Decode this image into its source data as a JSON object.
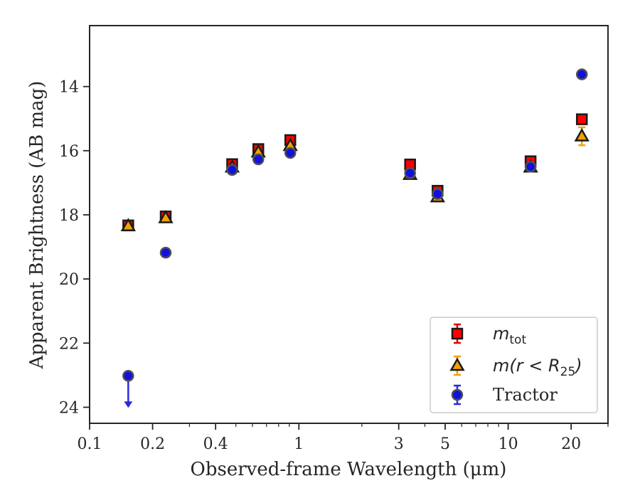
{
  "chart_data": {
    "type": "scatter",
    "xlabel": "Observed-frame Wavelength (μm)",
    "ylabel": "Apparent Brightness (AB mag)",
    "x_scale": "log",
    "xlim": [
      0.1,
      30
    ],
    "ylim": [
      24.5,
      12.1
    ],
    "y_inverted": true,
    "grid": false,
    "legend_position": "bottom-right",
    "x_ticks": [
      {
        "value": 0.1,
        "label": "0.1"
      },
      {
        "value": 0.2,
        "label": "0.2"
      },
      {
        "value": 0.4,
        "label": "0.4"
      },
      {
        "value": 1,
        "label": "1"
      },
      {
        "value": 3,
        "label": "3"
      },
      {
        "value": 5,
        "label": "5"
      },
      {
        "value": 10,
        "label": "10"
      },
      {
        "value": 20,
        "label": "20"
      }
    ],
    "y_ticks": [
      {
        "value": 14,
        "label": "14"
      },
      {
        "value": 16,
        "label": "16"
      },
      {
        "value": 18,
        "label": "18"
      },
      {
        "value": 20,
        "label": "20"
      },
      {
        "value": 22,
        "label": "22"
      },
      {
        "value": 24,
        "label": "24"
      }
    ],
    "series": [
      {
        "name": "m_tot",
        "legend": {
          "base": "m",
          "sub": "tot"
        },
        "marker": "square",
        "color": "#ff0000",
        "edge_color": "#1a1a1a",
        "error_color": "#e00000",
        "points": [
          {
            "x": 0.153,
            "y": 18.33
          },
          {
            "x": 0.231,
            "y": 18.05
          },
          {
            "x": 0.48,
            "y": 16.42
          },
          {
            "x": 0.64,
            "y": 15.95
          },
          {
            "x": 0.91,
            "y": 15.67
          },
          {
            "x": 3.4,
            "y": 16.43
          },
          {
            "x": 4.6,
            "y": 17.25
          },
          {
            "x": 12.8,
            "y": 16.33
          },
          {
            "x": 22.5,
            "y": 15.02
          }
        ]
      },
      {
        "name": "m(r<R25)",
        "legend": {
          "base": "m(r < R",
          "sub": "25",
          "tail": ")"
        },
        "marker": "triangle",
        "color": "#f5a000",
        "edge_color": "#1a1a1a",
        "error_color": "#f5a000",
        "points": [
          {
            "x": 0.153,
            "y": 18.35
          },
          {
            "x": 0.231,
            "y": 18.1
          },
          {
            "x": 0.48,
            "y": 16.52
          },
          {
            "x": 0.64,
            "y": 16.05
          },
          {
            "x": 0.91,
            "y": 15.85
          },
          {
            "x": 3.4,
            "y": 16.75
          },
          {
            "x": 4.6,
            "y": 17.45
          },
          {
            "x": 12.8,
            "y": 16.52
          },
          {
            "x": 22.5,
            "y": 15.55,
            "err": 0.28
          }
        ]
      },
      {
        "name": "Tractor",
        "legend": {
          "base": "Tractor"
        },
        "marker": "circle",
        "color": "#1010e0",
        "edge_color": "#505050",
        "error_color": "#2a2ae0",
        "points": [
          {
            "x": 0.153,
            "y": 23.02,
            "upper_limit": true
          },
          {
            "x": 0.231,
            "y": 19.18
          },
          {
            "x": 0.48,
            "y": 16.6
          },
          {
            "x": 0.64,
            "y": 16.27
          },
          {
            "x": 0.91,
            "y": 16.07
          },
          {
            "x": 3.4,
            "y": 16.7
          },
          {
            "x": 4.6,
            "y": 17.35
          },
          {
            "x": 12.8,
            "y": 16.5
          },
          {
            "x": 22.5,
            "y": 13.62
          }
        ]
      }
    ]
  }
}
